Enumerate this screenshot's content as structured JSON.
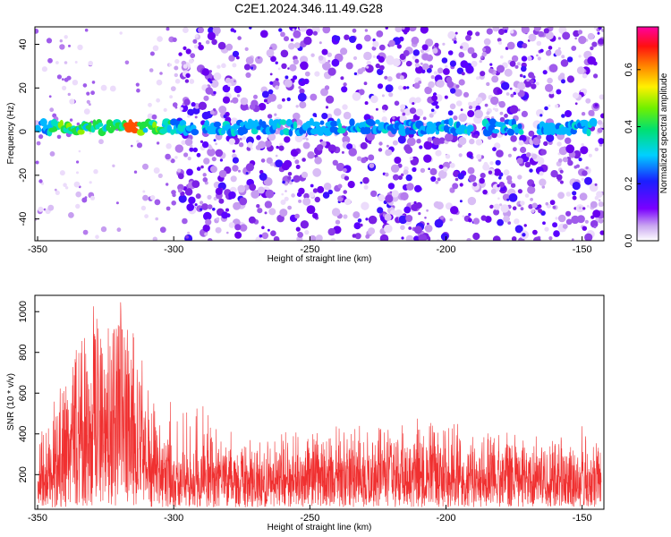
{
  "title": "C2E1.2024.346.11.49.G28",
  "colors": {
    "signal_band": "#00c8ff",
    "snr_line": "#f03030",
    "noise_purple": "#8a2be2"
  },
  "chart_data": [
    {
      "type": "heatmap",
      "title": "C2E1.2024.346.11.49.G28",
      "xlabel": "Height of straight line (km)",
      "ylabel": "Frequency (Hz)",
      "xlim": [
        -351,
        -142
      ],
      "ylim": [
        -50,
        48
      ],
      "xticks": [
        -350,
        -300,
        -250,
        -200,
        -150
      ],
      "yticks": [
        -40,
        -20,
        0,
        20,
        40
      ],
      "colorbar": {
        "label": "Normalized spectral amplitude",
        "range": [
          0.0,
          0.75
        ],
        "ticks": [
          0.0,
          0.2,
          0.4,
          0.6
        ],
        "colormap": "rainbow (purple-blue-cyan-green-yellow-red-magenta)"
      },
      "features": {
        "signal_band_frequency_hz": 2,
        "signal_band_x_range_km": [
          -350,
          -145
        ],
        "strongest_region_km": [
          -345,
          -300
        ],
        "peak_value_near_km": -315,
        "sparse_noise_region_km": [
          -350,
          -298
        ]
      }
    },
    {
      "type": "line",
      "xlabel": "Height of straight line (km)",
      "ylabel": "SNR (10 * v/v)",
      "xlim": [
        -351,
        -142
      ],
      "ylim": [
        30,
        1080
      ],
      "xticks": [
        -350,
        -300,
        -250,
        -200,
        -150
      ],
      "yticks": [
        200,
        400,
        600,
        800,
        1000
      ],
      "series": [
        {
          "x": [
            -350,
            -340,
            -330,
            -320,
            -315,
            -310,
            -300,
            -290,
            -280,
            -270,
            -260,
            -250,
            -240,
            -230,
            -220,
            -210,
            -200,
            -190,
            -180,
            -170,
            -160,
            -150,
            -143
          ],
          "y_mean": [
            170,
            330,
            430,
            500,
            470,
            280,
            170,
            160,
            190,
            170,
            170,
            180,
            200,
            190,
            200,
            210,
            200,
            170,
            190,
            180,
            175,
            170,
            170
          ],
          "y_peak": [
            420,
            640,
            1070,
            900,
            1070,
            830,
            560,
            560,
            420,
            370,
            420,
            400,
            500,
            440,
            420,
            560,
            500,
            400,
            450,
            340,
            350,
            460,
            350
          ]
        }
      ]
    }
  ]
}
